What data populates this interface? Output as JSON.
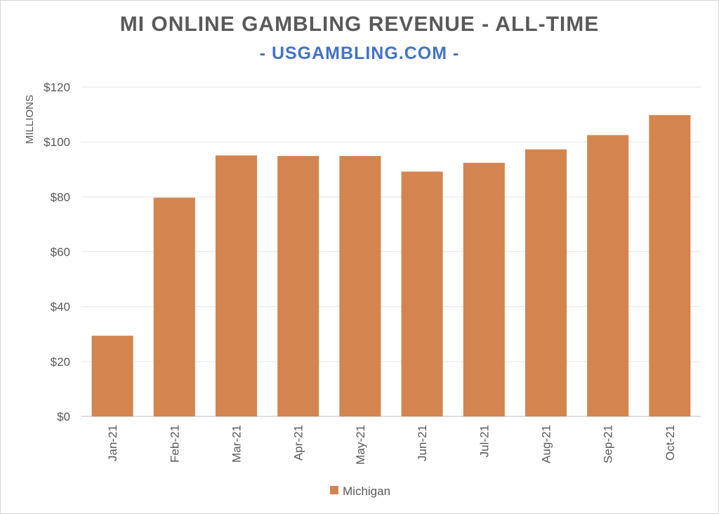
{
  "chart_data": {
    "type": "bar",
    "title": "MI ONLINE GAMBLING REVENUE - ALL-TIME",
    "subtitle": "- USGAMBLING.COM -",
    "xlabel": "",
    "ylabel": "MILLIONS",
    "ylim": [
      0,
      120
    ],
    "ytick_values": [
      0,
      20,
      40,
      60,
      80,
      100,
      120
    ],
    "ytick_labels": [
      "$0",
      "$20",
      "$40",
      "$60",
      "$80",
      "$100",
      "$120"
    ],
    "categories": [
      "Jan-21",
      "Feb-21",
      "Mar-21",
      "Apr-21",
      "May-21",
      "Jun-21",
      "Jul-21",
      "Aug-21",
      "Sep-21",
      "Oct-21"
    ],
    "series": [
      {
        "name": "Michigan",
        "values": [
          29.4,
          79.7,
          95.1,
          94.9,
          94.9,
          89.2,
          92.4,
          97.3,
          102.5,
          109.8
        ]
      }
    ],
    "grid": true,
    "legend_position": "bottom",
    "colors": {
      "bar": "#d4854f",
      "grid": "#e6e6e6",
      "axis": "#bfbfbf",
      "title": "#595959",
      "subtitle": "#4472c4"
    }
  }
}
